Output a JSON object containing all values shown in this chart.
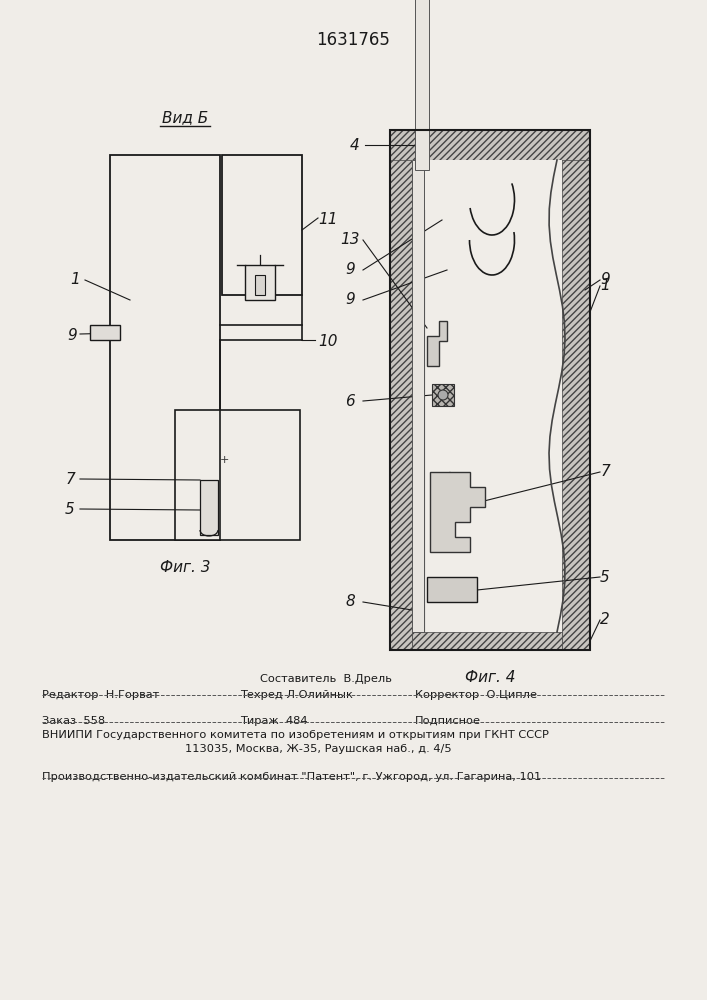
{
  "title": "1631765",
  "bg_color": "#f0ede8",
  "fig3_label": "Фиг. 3",
  "fig4_label": "Фиг. 4",
  "vid_label": "Вид Б",
  "line_color": "#1a1a1a"
}
